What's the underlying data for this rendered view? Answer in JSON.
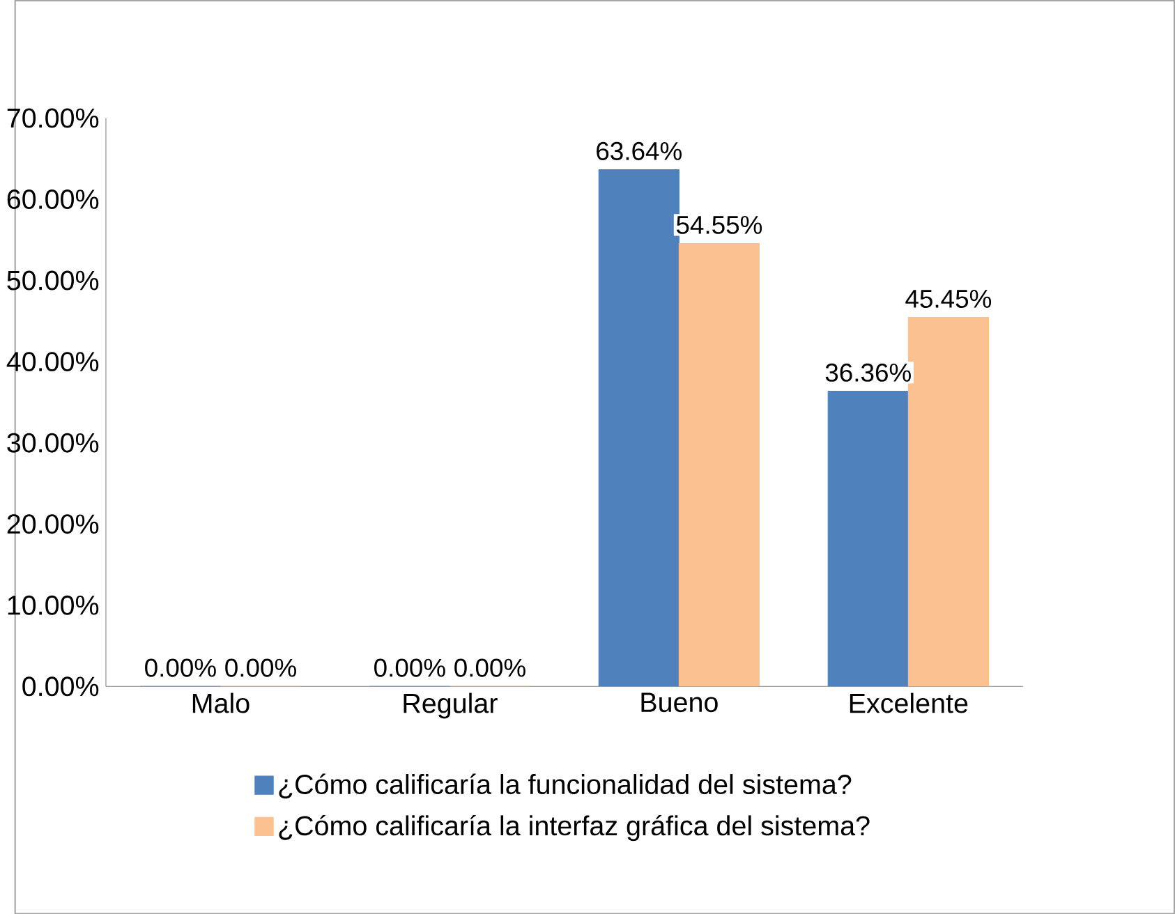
{
  "chart_data": {
    "type": "bar",
    "categories": [
      "Malo",
      "Regular",
      "Bueno",
      "Excelente"
    ],
    "series": [
      {
        "name": "¿Cómo calificaría la funcionalidad del sistema?",
        "color": "#4f81bd",
        "values": [
          0,
          0,
          63.64,
          36.36
        ],
        "value_labels": [
          "0.00%",
          "0.00%",
          "63.64%",
          "36.36%"
        ]
      },
      {
        "name": "¿Cómo calificaría la interfaz gráfica del sistema?",
        "color": "#fac090",
        "values": [
          0,
          0,
          54.55,
          45.45
        ],
        "value_labels": [
          "0.00%",
          "0.00%",
          "54.55%",
          "45.45%"
        ]
      }
    ],
    "ylim": [
      0,
      70
    ],
    "yticks": [
      {
        "value": 0,
        "label": "0.00%"
      },
      {
        "value": 10,
        "label": "10.00%"
      },
      {
        "value": 20,
        "label": "20.00%"
      },
      {
        "value": 30,
        "label": "30.00%"
      },
      {
        "value": 40,
        "label": "40.00%"
      },
      {
        "value": 50,
        "label": "50.00%"
      },
      {
        "value": 60,
        "label": "60.00%"
      },
      {
        "value": 70,
        "label": "70.00%"
      }
    ],
    "grid": false,
    "legend": "bottom"
  }
}
